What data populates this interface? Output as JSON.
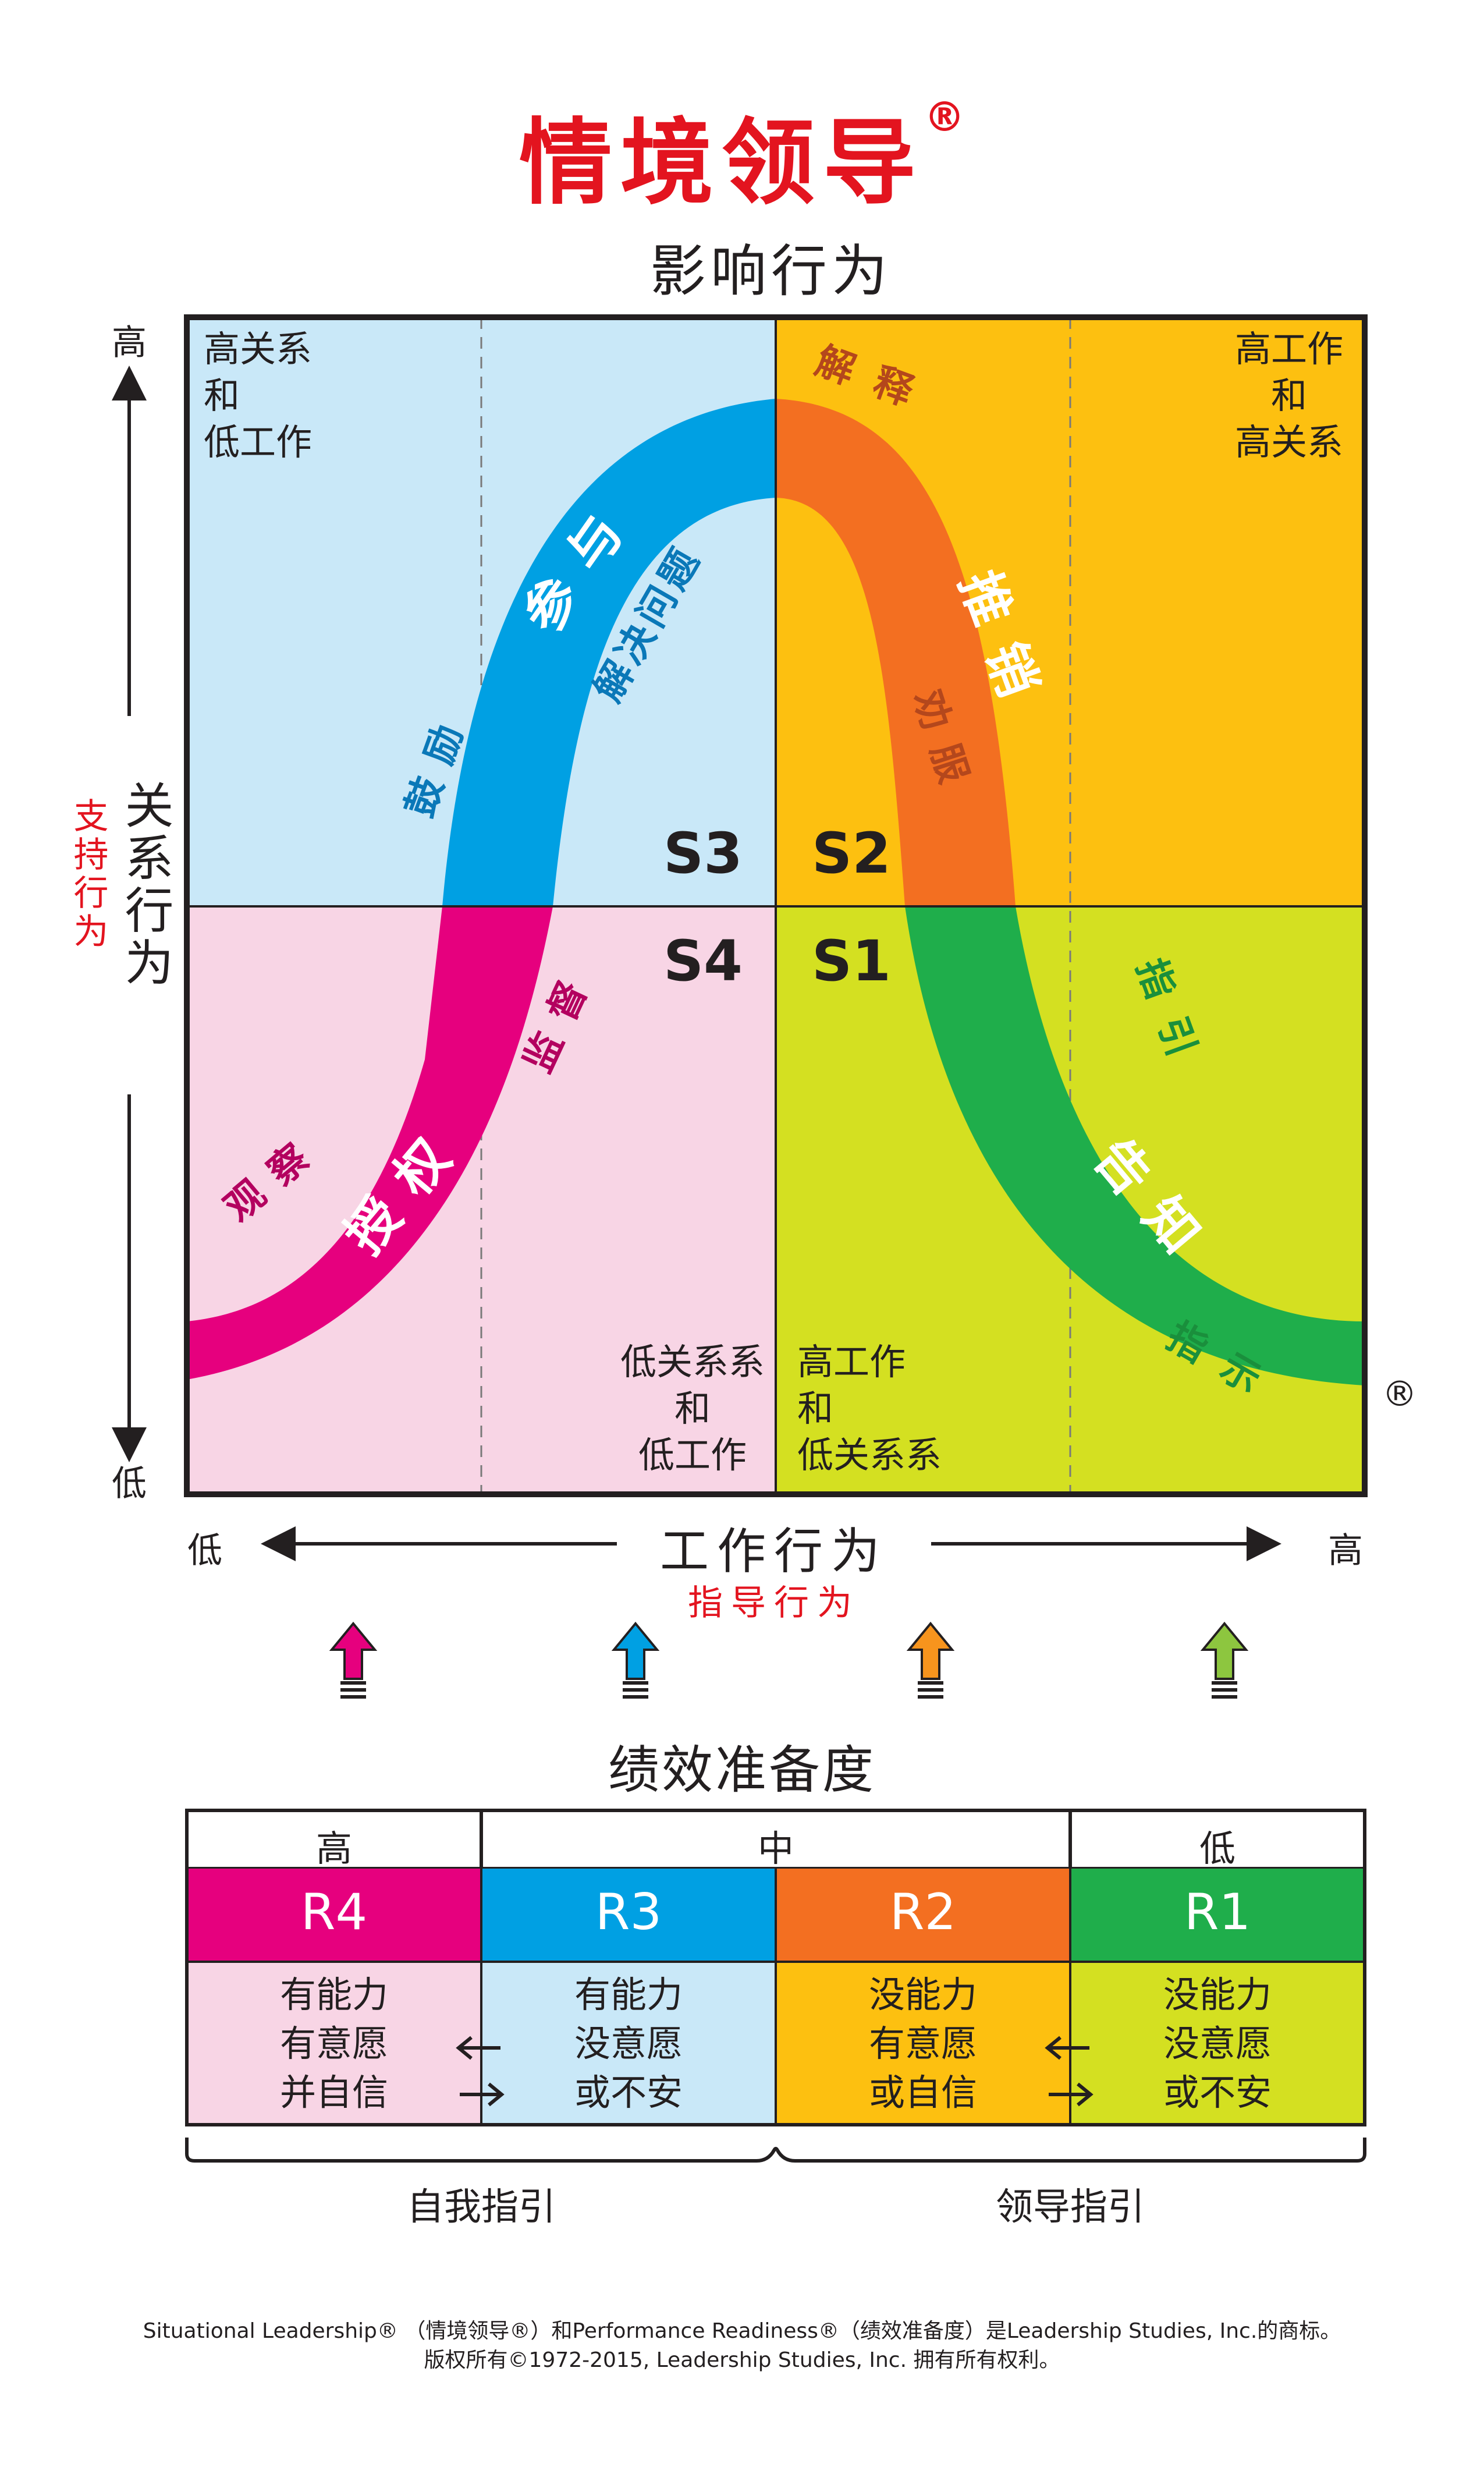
{
  "title": "情境领导",
  "title_mark": "®",
  "subtitle": "影响行为",
  "quadrants": {
    "top_left": [
      "高关系",
      "和",
      "低工作"
    ],
    "top_right": [
      "高工作",
      "和",
      "高关系"
    ],
    "bottom_left": [
      "低关系系",
      "和",
      "低工作"
    ],
    "bottom_right": [
      "高工作",
      "和",
      "低关系系"
    ]
  },
  "styles": {
    "s3": "S3",
    "s2": "S2",
    "s4": "S4",
    "s1": "S1"
  },
  "curve_labels": {
    "s3_main": "参与",
    "s3_sub1": "鼓励",
    "s3_sub2": "解决问题",
    "s2_main": "推销",
    "s2_sub1": "解释",
    "s2_sub2": "劝服",
    "s1_main": "告知",
    "s1_sub1": "指引",
    "s1_sub2": "指示",
    "s4_main": "授权",
    "s4_sub1": "观察",
    "s4_sub2": "监督"
  },
  "y_axis": {
    "high": "高",
    "low": "低",
    "label": "关系行为",
    "sublabel": "支持行为"
  },
  "x_axis": {
    "low": "低",
    "high": "高",
    "label": "工作行为",
    "sublabel": "指导行为"
  },
  "registered": "®",
  "readiness": {
    "title": "绩效准备度",
    "levels": [
      "高",
      "中",
      "低"
    ],
    "cells": [
      {
        "code": "R4",
        "color": "#e6007e",
        "desc": [
          "有能力",
          "有意愿",
          "并自信"
        ]
      },
      {
        "code": "R3",
        "color": "#00a0e3",
        "desc": [
          "有能力",
          "没意愿",
          "或不安"
        ]
      },
      {
        "code": "R2",
        "color": "#f36f21",
        "desc": [
          "没能力",
          "有意愿",
          "或自信"
        ]
      },
      {
        "code": "R1",
        "color": "#1fae4b",
        "desc": [
          "没能力",
          "没意愿",
          "或不安"
        ]
      }
    ],
    "bottom_left": "自我指引",
    "bottom_right": "领导指引"
  },
  "colors": {
    "q_top_left": "#c9e8f8",
    "q_top_right": "#fdc010",
    "q_bottom_left": "#f8d5e5",
    "q_bottom_right": "#d4e021",
    "magenta": "#e6007e",
    "blue": "#00a0e3",
    "orange": "#f36f21",
    "green": "#1fae4b",
    "light_green": "#8dc63f"
  },
  "footer": {
    "line1": "Situational Leadership® （情境领导®）和Performance Readiness®（绩效准备度）是Leadership Studies, Inc.的商标。",
    "line2": "版权所有©1972-2015, Leadership Studies, Inc. 拥有所有权利。"
  }
}
